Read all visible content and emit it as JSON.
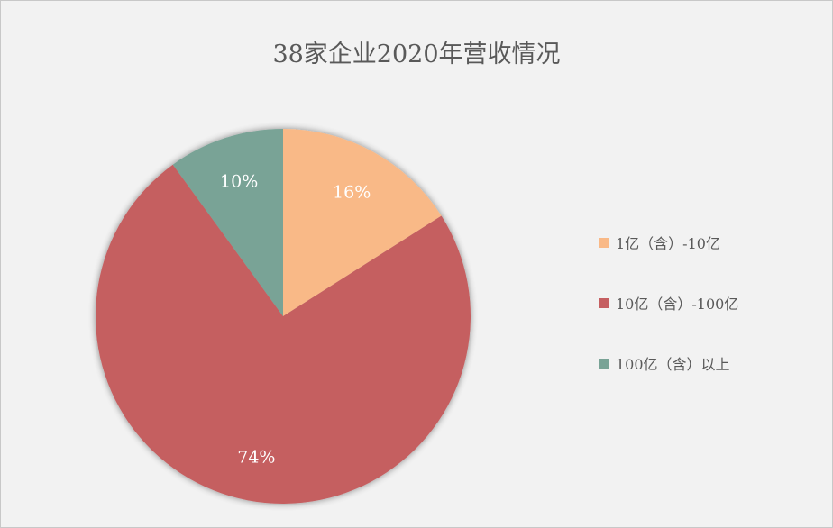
{
  "chart_data": {
    "type": "pie",
    "title": "38家企业2020年营收情况",
    "categories": [
      "1亿（含）-10亿",
      "10亿（含）-100亿",
      "100亿（含）以上"
    ],
    "values": [
      16,
      74,
      10
    ],
    "labels": [
      "16%",
      "74%",
      "10%"
    ],
    "colors": [
      "#f9b987",
      "#c55f61",
      "#79a396"
    ],
    "start_angle": "top, clockwise",
    "legend_position": "right"
  }
}
